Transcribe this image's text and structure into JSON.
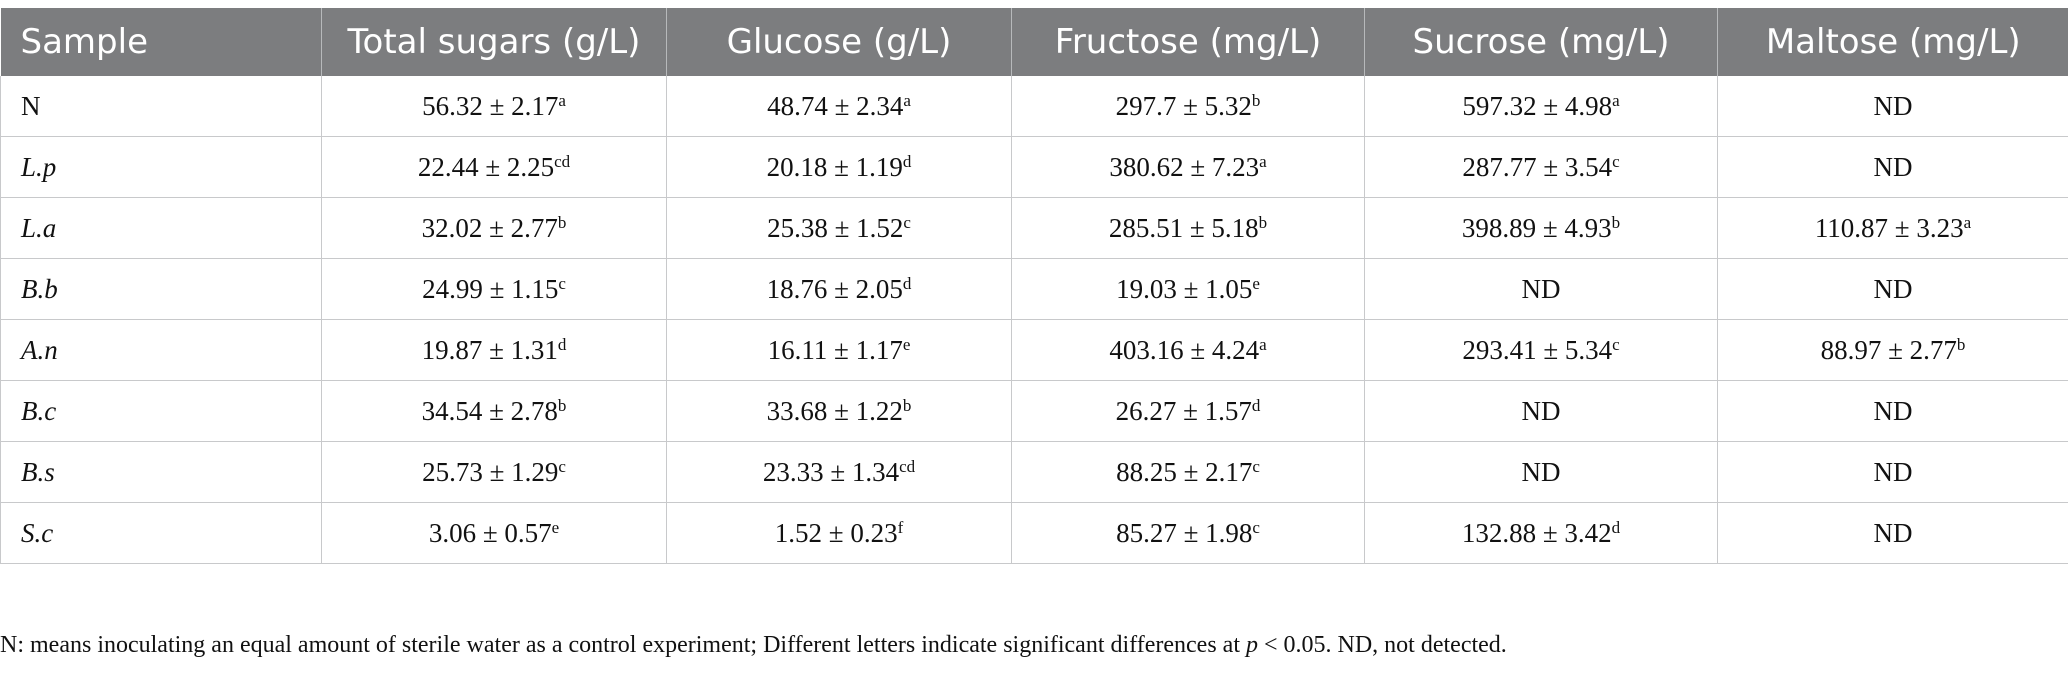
{
  "table": {
    "headers": [
      "Sample",
      "Total sugars (g/L)",
      "Glucose (g/L)",
      "Fructose (mg/L)",
      "Sucrose (mg/L)",
      "Maltose (mg/L)"
    ],
    "rows": [
      {
        "sample": "N",
        "italic": false,
        "cells": [
          {
            "v": "56.32 ± 2.17",
            "s": "a"
          },
          {
            "v": "48.74 ± 2.34",
            "s": "a"
          },
          {
            "v": "297.7 ± 5.32",
            "s": "b"
          },
          {
            "v": "597.32 ± 4.98",
            "s": "a"
          },
          {
            "v": "ND",
            "s": ""
          }
        ]
      },
      {
        "sample": "L.p",
        "italic": true,
        "cells": [
          {
            "v": "22.44 ± 2.25",
            "s": "cd"
          },
          {
            "v": "20.18 ± 1.19",
            "s": "d"
          },
          {
            "v": "380.62 ± 7.23",
            "s": "a"
          },
          {
            "v": "287.77 ± 3.54",
            "s": "c"
          },
          {
            "v": "ND",
            "s": ""
          }
        ]
      },
      {
        "sample": "L.a",
        "italic": true,
        "cells": [
          {
            "v": "32.02 ± 2.77",
            "s": "b"
          },
          {
            "v": "25.38 ± 1.52",
            "s": "c"
          },
          {
            "v": "285.51 ± 5.18",
            "s": "b"
          },
          {
            "v": "398.89 ± 4.93",
            "s": "b"
          },
          {
            "v": "110.87 ± 3.23",
            "s": "a"
          }
        ]
      },
      {
        "sample": "B.b",
        "italic": true,
        "cells": [
          {
            "v": "24.99 ± 1.15",
            "s": "c"
          },
          {
            "v": "18.76 ± 2.05",
            "s": "d"
          },
          {
            "v": "19.03 ± 1.05",
            "s": "e"
          },
          {
            "v": "ND",
            "s": ""
          },
          {
            "v": "ND",
            "s": ""
          }
        ]
      },
      {
        "sample": "A.n",
        "italic": true,
        "cells": [
          {
            "v": "19.87 ± 1.31",
            "s": "d"
          },
          {
            "v": "16.11 ± 1.17",
            "s": "e"
          },
          {
            "v": "403.16 ± 4.24",
            "s": "a"
          },
          {
            "v": "293.41 ± 5.34",
            "s": "c"
          },
          {
            "v": "88.97 ± 2.77",
            "s": "b"
          }
        ]
      },
      {
        "sample": "B.c",
        "italic": true,
        "cells": [
          {
            "v": "34.54 ± 2.78",
            "s": "b"
          },
          {
            "v": "33.68 ± 1.22",
            "s": "b"
          },
          {
            "v": "26.27 ± 1.57",
            "s": "d"
          },
          {
            "v": "ND",
            "s": ""
          },
          {
            "v": "ND",
            "s": ""
          }
        ]
      },
      {
        "sample": "B.s",
        "italic": true,
        "cells": [
          {
            "v": "25.73 ± 1.29",
            "s": "c"
          },
          {
            "v": "23.33 ± 1.34",
            "s": "cd"
          },
          {
            "v": "88.25 ± 2.17",
            "s": "c"
          },
          {
            "v": "ND",
            "s": ""
          },
          {
            "v": "ND",
            "s": ""
          }
        ]
      },
      {
        "sample": "S.c",
        "italic": true,
        "cells": [
          {
            "v": "3.06 ± 0.57",
            "s": "e"
          },
          {
            "v": "1.52 ± 0.23",
            "s": "f"
          },
          {
            "v": "85.27 ± 1.98",
            "s": "c"
          },
          {
            "v": "132.88 ± 3.42",
            "s": "d"
          },
          {
            "v": "ND",
            "s": ""
          }
        ]
      }
    ]
  },
  "footnote": {
    "part1": "N: means inoculating an equal amount of sterile water as a control experiment; Different letters indicate significant differences at ",
    "p": "p",
    "part2": " < 0.05. ND, not detected."
  },
  "colors": {
    "header_bg": "#7c7d7f",
    "header_text": "#ffffff",
    "grid": "#c8c9cb"
  }
}
